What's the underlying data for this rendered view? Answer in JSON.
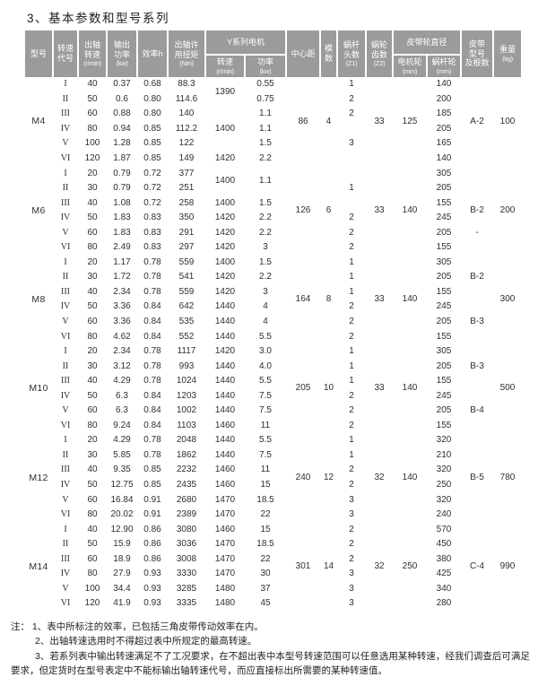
{
  "title": "3、基本参数和型号系列",
  "table": {
    "header_row1": [
      {
        "name": "model",
        "main": "型号",
        "sub": "",
        "rowspan": 2,
        "colspan": 1
      },
      {
        "name": "speed-code",
        "main": "转速\n代号",
        "sub": "",
        "rowspan": 2,
        "colspan": 1
      },
      {
        "name": "output-speed",
        "main": "出轴\n转速",
        "sub": "(r/min)",
        "rowspan": 2,
        "colspan": 1
      },
      {
        "name": "output-power",
        "main": "输出\n功率",
        "sub": "(kw)",
        "rowspan": 2,
        "colspan": 1
      },
      {
        "name": "efficiency",
        "main": "效率h",
        "sub": "",
        "rowspan": 2,
        "colspan": 1
      },
      {
        "name": "allowable-torque",
        "main": "出轴许\n用扭矩",
        "sub": "(Nm)",
        "rowspan": 2,
        "colspan": 1
      },
      {
        "name": "y-series-motor",
        "main": "Y系列电机",
        "sub": "",
        "rowspan": 1,
        "colspan": 2
      },
      {
        "name": "center-distance",
        "main": "中心距",
        "sub": "",
        "rowspan": 2,
        "colspan": 1
      },
      {
        "name": "module",
        "main": "模\n数",
        "sub": "",
        "rowspan": 2,
        "colspan": 1
      },
      {
        "name": "worm-starts",
        "main": "蜗杆\n头数",
        "sub": "(Z1)",
        "rowspan": 2,
        "colspan": 1
      },
      {
        "name": "wormgear-teeth",
        "main": "蜗轮\n齿数",
        "sub": "(Z2)",
        "rowspan": 2,
        "colspan": 1
      },
      {
        "name": "pulley-diameter",
        "main": "皮带轮直径",
        "sub": "",
        "rowspan": 1,
        "colspan": 2
      },
      {
        "name": "belt-type",
        "main": "皮带\n型号\n及根数",
        "sub": "",
        "rowspan": 2,
        "colspan": 1
      },
      {
        "name": "weight",
        "main": "重量",
        "sub": "(kg)",
        "rowspan": 2,
        "colspan": 1
      }
    ],
    "header_row2": [
      {
        "name": "motor-speed",
        "main": "转速",
        "sub": "(r/min)"
      },
      {
        "name": "motor-power",
        "main": "功率",
        "sub": "(kw)"
      },
      {
        "name": "motor-pulley",
        "main": "电机轮",
        "sub": "(mm)"
      },
      {
        "name": "worm-pulley",
        "main": "蜗杆轮",
        "sub": "(mm)"
      }
    ],
    "groups": [
      {
        "model": "M4",
        "shared": {
          "center_distance": "86",
          "module": "4",
          "z2": "33",
          "motor_pulley": "125",
          "weight": "100"
        },
        "belt": {
          "mode": "full",
          "label": "A-2",
          "dash": ""
        },
        "motor_merge": {
          "speed": "1390",
          "power": ""
        },
        "rows": [
          {
            "code": "I",
            "out_speed": "40",
            "out_power": "0.37",
            "eff": "0.68",
            "torque": "88.3",
            "motor_speed": "",
            "motor_power": "0.55",
            "z1": "1",
            "worm_pulley": "140"
          },
          {
            "code": "II",
            "out_speed": "50",
            "out_power": "0.6",
            "eff": "0.80",
            "torque": "114.6",
            "motor_speed": "",
            "motor_power": "0.75",
            "z1": "2",
            "worm_pulley": "200"
          },
          {
            "code": "III",
            "out_speed": "60",
            "out_power": "0.88",
            "eff": "0.80",
            "torque": "140",
            "motor_speed": "",
            "motor_power": "1.1",
            "z1": "2",
            "worm_pulley": "185"
          },
          {
            "code": "IV",
            "out_speed": "80",
            "out_power": "0.94",
            "eff": "0.85",
            "torque": "112.2",
            "motor_speed": "1400",
            "motor_power": "1.1",
            "z1": "",
            "worm_pulley": "205"
          },
          {
            "code": "V",
            "out_speed": "100",
            "out_power": "1.28",
            "eff": "0.85",
            "torque": "122",
            "motor_speed": "",
            "motor_power": "1.5",
            "z1": "3",
            "worm_pulley": "165"
          },
          {
            "code": "VI",
            "out_speed": "120",
            "out_power": "1.87",
            "eff": "0.85",
            "torque": "149",
            "motor_speed": "1420",
            "motor_power": "2.2",
            "z1": "",
            "worm_pulley": "140"
          }
        ]
      },
      {
        "model": "M6",
        "shared": {
          "center_distance": "126",
          "module": "6",
          "z2": "33",
          "motor_pulley": "140",
          "weight": "200"
        },
        "belt": {
          "mode": "full",
          "label": "B-2",
          "dash": "-"
        },
        "motor_merge": {
          "speed": "1400",
          "power": "1.1"
        },
        "rows": [
          {
            "code": "I",
            "out_speed": "20",
            "out_power": "0.79",
            "eff": "0.72",
            "torque": "377",
            "motor_speed": "",
            "motor_power": "",
            "z1": "",
            "worm_pulley": "305"
          },
          {
            "code": "II",
            "out_speed": "30",
            "out_power": "0.79",
            "eff": "0.72",
            "torque": "251",
            "motor_speed": "",
            "motor_power": "",
            "z1": "1",
            "worm_pulley": "205"
          },
          {
            "code": "III",
            "out_speed": "40",
            "out_power": "1.08",
            "eff": "0.72",
            "torque": "258",
            "motor_speed": "1400",
            "motor_power": "1.5",
            "z1": "",
            "worm_pulley": "155"
          },
          {
            "code": "IV",
            "out_speed": "50",
            "out_power": "1.83",
            "eff": "0.83",
            "torque": "350",
            "motor_speed": "1420",
            "motor_power": "2.2",
            "z1": "2",
            "worm_pulley": "245"
          },
          {
            "code": "V",
            "out_speed": "60",
            "out_power": "1.83",
            "eff": "0.83",
            "torque": "291",
            "motor_speed": "1420",
            "motor_power": "2.2",
            "z1": "2",
            "worm_pulley": "205"
          },
          {
            "code": "VI",
            "out_speed": "80",
            "out_power": "2.49",
            "eff": "0.83",
            "torque": "297",
            "motor_speed": "1420",
            "motor_power": "3",
            "z1": "2",
            "worm_pulley": "155"
          }
        ]
      },
      {
        "model": "M8",
        "shared": {
          "center_distance": "164",
          "module": "8",
          "z2": "33",
          "motor_pulley": "140",
          "weight": "300"
        },
        "belt": {
          "mode": "split",
          "labels": [
            "B-2",
            "B-3"
          ]
        },
        "motor_merge": null,
        "rows": [
          {
            "code": "I",
            "out_speed": "20",
            "out_power": "1.17",
            "eff": "0.78",
            "torque": "559",
            "motor_speed": "1400",
            "motor_power": "1.5",
            "z1": "1",
            "worm_pulley": "305"
          },
          {
            "code": "II",
            "out_speed": "30",
            "out_power": "1.72",
            "eff": "0.78",
            "torque": "541",
            "motor_speed": "1420",
            "motor_power": "2.2",
            "z1": "1",
            "worm_pulley": "205"
          },
          {
            "code": "III",
            "out_speed": "40",
            "out_power": "2.34",
            "eff": "0.78",
            "torque": "559",
            "motor_speed": "1420",
            "motor_power": "3",
            "z1": "1",
            "worm_pulley": "155"
          },
          {
            "code": "IV",
            "out_speed": "50",
            "out_power": "3.36",
            "eff": "0.84",
            "torque": "642",
            "motor_speed": "1440",
            "motor_power": "4",
            "z1": "2",
            "worm_pulley": "245"
          },
          {
            "code": "V",
            "out_speed": "60",
            "out_power": "3.36",
            "eff": "0.84",
            "torque": "535",
            "motor_speed": "1440",
            "motor_power": "4",
            "z1": "2",
            "worm_pulley": "205"
          },
          {
            "code": "VI",
            "out_speed": "80",
            "out_power": "4.62",
            "eff": "0.84",
            "torque": "552",
            "motor_speed": "1440",
            "motor_power": "5.5",
            "z1": "2",
            "worm_pulley": "155"
          }
        ]
      },
      {
        "model": "M10",
        "shared": {
          "center_distance": "205",
          "module": "10",
          "z2": "33",
          "motor_pulley": "140",
          "weight": "500"
        },
        "belt": {
          "mode": "split",
          "labels": [
            "B-3",
            "B-4"
          ]
        },
        "motor_merge": null,
        "rows": [
          {
            "code": "I",
            "out_speed": "20",
            "out_power": "2.34",
            "eff": "0.78",
            "torque": "1117",
            "motor_speed": "1420",
            "motor_power": "3.0",
            "z1": "1",
            "worm_pulley": "305"
          },
          {
            "code": "II",
            "out_speed": "30",
            "out_power": "3.12",
            "eff": "0.78",
            "torque": "993",
            "motor_speed": "1440",
            "motor_power": "4.0",
            "z1": "1",
            "worm_pulley": "205"
          },
          {
            "code": "III",
            "out_speed": "40",
            "out_power": "4.29",
            "eff": "0.78",
            "torque": "1024",
            "motor_speed": "1440",
            "motor_power": "5.5",
            "z1": "1",
            "worm_pulley": "155"
          },
          {
            "code": "IV",
            "out_speed": "50",
            "out_power": "6.3",
            "eff": "0.84",
            "torque": "1203",
            "motor_speed": "1440",
            "motor_power": "7.5",
            "z1": "2",
            "worm_pulley": "245"
          },
          {
            "code": "V",
            "out_speed": "60",
            "out_power": "6.3",
            "eff": "0.84",
            "torque": "1002",
            "motor_speed": "1440",
            "motor_power": "7.5",
            "z1": "2",
            "worm_pulley": "205"
          },
          {
            "code": "VI",
            "out_speed": "80",
            "out_power": "9.24",
            "eff": "0.84",
            "torque": "1103",
            "motor_speed": "1460",
            "motor_power": "11",
            "z1": "2",
            "worm_pulley": "155"
          }
        ]
      },
      {
        "model": "M12",
        "shared": {
          "center_distance": "240",
          "module": "12",
          "z2": "32",
          "motor_pulley": "140",
          "weight": "780"
        },
        "belt": {
          "mode": "full",
          "label": "B-5",
          "dash": ""
        },
        "motor_merge": null,
        "rows": [
          {
            "code": "I",
            "out_speed": "20",
            "out_power": "4.29",
            "eff": "0.78",
            "torque": "2048",
            "motor_speed": "1440",
            "motor_power": "5.5",
            "z1": "1",
            "worm_pulley": "320"
          },
          {
            "code": "II",
            "out_speed": "30",
            "out_power": "5.85",
            "eff": "0.78",
            "torque": "1862",
            "motor_speed": "1440",
            "motor_power": "7.5",
            "z1": "1",
            "worm_pulley": "210"
          },
          {
            "code": "III",
            "out_speed": "40",
            "out_power": "9.35",
            "eff": "0.85",
            "torque": "2232",
            "motor_speed": "1460",
            "motor_power": "11",
            "z1": "2",
            "worm_pulley": "320"
          },
          {
            "code": "IV",
            "out_speed": "50",
            "out_power": "12.75",
            "eff": "0.85",
            "torque": "2435",
            "motor_speed": "1460",
            "motor_power": "15",
            "z1": "2",
            "worm_pulley": "250"
          },
          {
            "code": "V",
            "out_speed": "60",
            "out_power": "16.84",
            "eff": "0.91",
            "torque": "2680",
            "motor_speed": "1470",
            "motor_power": "18.5",
            "z1": "3",
            "worm_pulley": "320"
          },
          {
            "code": "VI",
            "out_speed": "80",
            "out_power": "20.02",
            "eff": "0.91",
            "torque": "2389",
            "motor_speed": "1470",
            "motor_power": "22",
            "z1": "3",
            "worm_pulley": "240"
          }
        ]
      },
      {
        "model": "M14",
        "shared": {
          "center_distance": "301",
          "module": "14",
          "z2": "32",
          "motor_pulley": "250",
          "weight": "990"
        },
        "belt": {
          "mode": "full",
          "label": "C-4",
          "dash": ""
        },
        "motor_merge": null,
        "rows": [
          {
            "code": "I",
            "out_speed": "40",
            "out_power": "12.90",
            "eff": "0.86",
            "torque": "3080",
            "motor_speed": "1460",
            "motor_power": "15",
            "z1": "2",
            "worm_pulley": "570"
          },
          {
            "code": "II",
            "out_speed": "50",
            "out_power": "15.9",
            "eff": "0.86",
            "torque": "3036",
            "motor_speed": "1470",
            "motor_power": "18.5",
            "z1": "2",
            "worm_pulley": "450"
          },
          {
            "code": "III",
            "out_speed": "60",
            "out_power": "18.9",
            "eff": "0.86",
            "torque": "3008",
            "motor_speed": "1470",
            "motor_power": "22",
            "z1": "2",
            "worm_pulley": "380"
          },
          {
            "code": "IV",
            "out_speed": "80",
            "out_power": "27.9",
            "eff": "0.93",
            "torque": "3330",
            "motor_speed": "1470",
            "motor_power": "30",
            "z1": "3",
            "worm_pulley": "425"
          },
          {
            "code": "V",
            "out_speed": "100",
            "out_power": "34.4",
            "eff": "0.93",
            "torque": "3285",
            "motor_speed": "1480",
            "motor_power": "37",
            "z1": "3",
            "worm_pulley": "340"
          },
          {
            "code": "VI",
            "out_speed": "120",
            "out_power": "41.9",
            "eff": "0.93",
            "torque": "3335",
            "motor_speed": "1480",
            "motor_power": "45",
            "z1": "3",
            "worm_pulley": "280"
          }
        ]
      }
    ]
  },
  "notes": {
    "prefix": "注：",
    "items": [
      "1、表中所标注的效率，已包括三角皮带传动效率在内。",
      "2、出轴转速选用时不得超过表中所规定的最高转速。",
      "3、若系列表中输出转速满足不了工况要求，在不超出表中本型号转速范围可以任意选用某种转速，经我们调查后可满足要求，但定货时在型号表定中不能标输出轴转速代号，而应直接标出所需要的某种转速值。"
    ]
  }
}
